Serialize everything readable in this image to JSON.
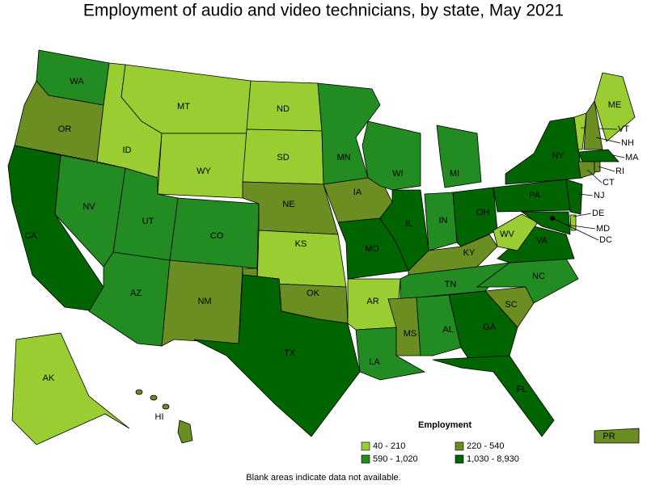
{
  "title": "Employment of audio and video technicians, by state, May 2021",
  "legend": {
    "title": "Employment",
    "items": [
      {
        "label": "40 - 210",
        "color": "#9acd32"
      },
      {
        "label": "220 - 540",
        "color": "#6b8e23"
      },
      {
        "label": "590 - 1,020",
        "color": "#228b22"
      },
      {
        "label": "1,030 - 8,930",
        "color": "#006400"
      }
    ]
  },
  "note": "Blank areas indicate data not available.",
  "states": [
    {
      "label": "WA",
      "class": 2
    },
    {
      "label": "OR",
      "class": 1
    },
    {
      "label": "CA",
      "class": 3
    },
    {
      "label": "NV",
      "class": 2
    },
    {
      "label": "ID",
      "class": 0
    },
    {
      "label": "MT",
      "class": 0
    },
    {
      "label": "WY",
      "class": 0
    },
    {
      "label": "UT",
      "class": 2
    },
    {
      "label": "CO",
      "class": 2
    },
    {
      "label": "AZ",
      "class": 2
    },
    {
      "label": "NM",
      "class": 1
    },
    {
      "label": "ND",
      "class": 0
    },
    {
      "label": "SD",
      "class": 0
    },
    {
      "label": "NE",
      "class": 1
    },
    {
      "label": "KS",
      "class": 0
    },
    {
      "label": "OK",
      "class": 1
    },
    {
      "label": "TX",
      "class": 3
    },
    {
      "label": "MN",
      "class": 2
    },
    {
      "label": "IA",
      "class": 1
    },
    {
      "label": "MO",
      "class": 3
    },
    {
      "label": "AR",
      "class": 0
    },
    {
      "label": "LA",
      "class": 2
    },
    {
      "label": "WI",
      "class": 2
    },
    {
      "label": "MI",
      "class": 2
    },
    {
      "label": "IL",
      "class": 3
    },
    {
      "label": "IN",
      "class": 2
    },
    {
      "label": "OH",
      "class": 3
    },
    {
      "label": "KY",
      "class": 1
    },
    {
      "label": "TN",
      "class": 2
    },
    {
      "label": "MS",
      "class": 1
    },
    {
      "label": "AL",
      "class": 2
    },
    {
      "label": "GA",
      "class": 3
    },
    {
      "label": "FL",
      "class": 3
    },
    {
      "label": "SC",
      "class": 1
    },
    {
      "label": "NC",
      "class": 2
    },
    {
      "label": "VA",
      "class": 3
    },
    {
      "label": "WV",
      "class": 0
    },
    {
      "label": "PA",
      "class": 3
    },
    {
      "label": "NY",
      "class": 3
    },
    {
      "label": "ME",
      "class": 0
    },
    {
      "label": "VT",
      "class": 0
    },
    {
      "label": "NH",
      "class": 1
    },
    {
      "label": "MA",
      "class": 3
    },
    {
      "label": "RI",
      "class": 1
    },
    {
      "label": "CT",
      "class": 1
    },
    {
      "label": "NJ",
      "class": 3
    },
    {
      "label": "DE",
      "class": 0
    },
    {
      "label": "MD",
      "class": 3
    },
    {
      "label": "DC",
      "class": 3
    },
    {
      "label": "AK",
      "class": 0
    },
    {
      "label": "HI",
      "class": 1
    },
    {
      "label": "PR",
      "class": 1
    }
  ]
}
